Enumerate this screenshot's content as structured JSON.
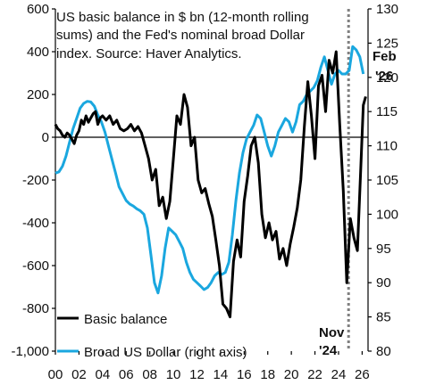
{
  "chart_data": {
    "type": "line",
    "title": [
      "US basic balance in $ bn (12-month rolling",
      "sums) and the Fed's nominal broad Dollar",
      "index. Source:  Haver Analytics."
    ],
    "x_ticks": [
      "00",
      "02",
      "04",
      "06",
      "08",
      "10",
      "12",
      "14",
      "16",
      "18",
      "20",
      "22",
      "24",
      "26"
    ],
    "y_left": {
      "ylim": [
        -1000,
        600
      ],
      "ticks": [
        "600",
        "400",
        "200",
        "0",
        "-200",
        "-400",
        "-600",
        "-800",
        "-1,000"
      ]
    },
    "y_right": {
      "ylim": [
        80,
        130
      ],
      "ticks": [
        "130",
        "125",
        "120",
        "115",
        "110",
        "105",
        "100",
        "95",
        "90",
        "85",
        "80"
      ]
    },
    "annotations": {
      "vline_date": 2024.85,
      "vline_label": [
        "Nov",
        "'24"
      ],
      "end_label": [
        "Feb",
        "'26"
      ]
    },
    "colors": {
      "basic_balance": "#000000",
      "dollar": "#1aa7df",
      "vline": "#808080",
      "vline_label": "#808080"
    },
    "series": [
      {
        "name": "Basic balance",
        "axis": "left",
        "x": [
          2000.0,
          2000.2,
          2000.4,
          2000.6,
          2000.8,
          2001.0,
          2001.2,
          2001.4,
          2001.6,
          2001.8,
          2002.0,
          2002.2,
          2002.4,
          2002.6,
          2002.8,
          2003.0,
          2003.2,
          2003.4,
          2003.6,
          2003.8,
          2004.0,
          2004.3,
          2004.6,
          2004.9,
          2005.2,
          2005.5,
          2005.8,
          2006.1,
          2006.4,
          2006.7,
          2007.0,
          2007.3,
          2007.6,
          2007.9,
          2008.2,
          2008.5,
          2008.8,
          2009.1,
          2009.4,
          2009.7,
          2010.0,
          2010.3,
          2010.6,
          2010.9,
          2011.2,
          2011.5,
          2011.8,
          2012.1,
          2012.4,
          2012.7,
          2013.0,
          2013.3,
          2013.6,
          2013.9,
          2014.2,
          2014.5,
          2014.8,
          2015.1,
          2015.4,
          2015.7,
          2016.0,
          2016.3,
          2016.6,
          2016.9,
          2017.2,
          2017.5,
          2017.8,
          2018.1,
          2018.4,
          2018.7,
          2019.0,
          2019.3,
          2019.6,
          2019.9,
          2020.2,
          2020.5,
          2020.8,
          2021.1,
          2021.4,
          2021.7,
          2022.0,
          2022.3,
          2022.6,
          2022.9,
          2023.2,
          2023.5,
          2023.8,
          2024.1,
          2024.4,
          2024.7,
          2025.0,
          2025.3,
          2025.6,
          2025.9,
          2026.1,
          2026.3
        ],
        "values": [
          60,
          40,
          30,
          10,
          0,
          20,
          10,
          -10,
          -30,
          10,
          30,
          80,
          60,
          100,
          70,
          90,
          110,
          120,
          60,
          90,
          100,
          80,
          100,
          60,
          80,
          40,
          30,
          40,
          60,
          30,
          50,
          20,
          -40,
          -100,
          -200,
          -150,
          -320,
          -280,
          -380,
          -300,
          -100,
          100,
          60,
          200,
          140,
          -40,
          0,
          -200,
          -260,
          -240,
          -310,
          -370,
          -480,
          -600,
          -780,
          -800,
          -840,
          -580,
          -480,
          -560,
          -300,
          -180,
          -40,
          0,
          -120,
          -360,
          -470,
          -400,
          -480,
          -440,
          -570,
          -520,
          -600,
          -500,
          -420,
          -330,
          -200,
          50,
          260,
          100,
          -100,
          240,
          290,
          120,
          360,
          300,
          400,
          60,
          -250,
          -680,
          -380,
          -470,
          -530,
          -120,
          150,
          190
        ]
      },
      {
        "name": "Broad US Dollar (right axis)",
        "axis": "right",
        "x": [
          2000.0,
          2000.3,
          2000.6,
          2000.9,
          2001.2,
          2001.5,
          2001.8,
          2002.1,
          2002.4,
          2002.7,
          2003.0,
          2003.3,
          2003.6,
          2003.9,
          2004.2,
          2004.5,
          2004.8,
          2005.1,
          2005.4,
          2005.7,
          2006.0,
          2006.3,
          2006.6,
          2006.9,
          2007.2,
          2007.5,
          2007.8,
          2008.1,
          2008.4,
          2008.7,
          2009.0,
          2009.3,
          2009.6,
          2009.9,
          2010.2,
          2010.5,
          2010.8,
          2011.1,
          2011.4,
          2011.7,
          2012.0,
          2012.3,
          2012.6,
          2012.9,
          2013.2,
          2013.5,
          2013.8,
          2014.1,
          2014.4,
          2014.7,
          2015.0,
          2015.3,
          2015.6,
          2015.9,
          2016.2,
          2016.5,
          2016.8,
          2017.1,
          2017.4,
          2017.7,
          2018.0,
          2018.3,
          2018.6,
          2018.9,
          2019.2,
          2019.5,
          2019.8,
          2020.1,
          2020.4,
          2020.7,
          2021.0,
          2021.3,
          2021.6,
          2021.9,
          2022.2,
          2022.5,
          2022.8,
          2023.1,
          2023.4,
          2023.7,
          2024.0,
          2024.3,
          2024.6,
          2024.9,
          2025.2,
          2025.5,
          2025.8,
          2026.1
        ],
        "values": [
          106,
          106.2,
          107,
          108.5,
          110.5,
          112.5,
          114,
          115.5,
          116.2,
          116.5,
          116.4,
          115.8,
          114.5,
          113.5,
          112,
          110,
          108,
          106,
          104,
          103,
          102,
          101.5,
          101.2,
          100.8,
          100.5,
          100,
          98,
          94,
          90,
          88.5,
          91,
          95,
          98,
          97.5,
          97,
          96,
          95,
          93,
          91.5,
          90.5,
          90,
          89.5,
          89,
          89.3,
          90,
          91,
          91.5,
          91.2,
          91.5,
          93,
          97,
          102,
          106,
          109,
          111,
          112,
          113,
          114.5,
          114,
          112,
          110,
          108.5,
          110,
          112,
          113,
          114,
          113.5,
          112,
          113.5,
          116,
          116.5,
          117.5,
          118,
          118.5,
          119.5,
          121.5,
          123,
          121,
          119,
          120.5,
          121,
          120.5,
          120.5,
          121,
          124.5,
          124,
          123,
          120.5
        ]
      }
    ]
  },
  "legend": {
    "basic_balance": "Basic balance",
    "dollar": "Broad US Dollar (right axis)"
  }
}
